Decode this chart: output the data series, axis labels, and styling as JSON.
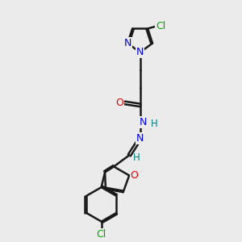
{
  "bg_color": "#ebebeb",
  "bond_color": "#1a1a1a",
  "N_color": "#0000ee",
  "O_color": "#ee0000",
  "Cl_color": "#00aa00",
  "H_color": "#008080",
  "line_width": 1.8,
  "figsize": [
    3.0,
    3.0
  ],
  "dpi": 100,
  "xlim": [
    0,
    10
  ],
  "ylim": [
    0,
    10
  ]
}
